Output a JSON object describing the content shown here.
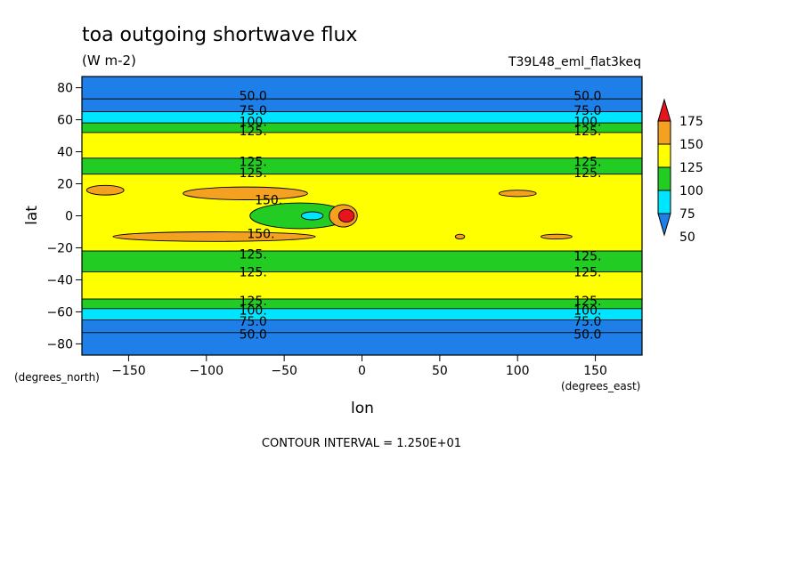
{
  "chart_data": {
    "type": "heatmap",
    "title": "toa outgoing shortwave flux",
    "subtitle": "(W m-2)",
    "dataset_label": "T39L48_eml_flat3keq",
    "xlabel": "lon",
    "ylabel": "lat",
    "x_units_label": "(degrees_east)",
    "y_units_label": "(degrees_north)",
    "xlim": [
      -180,
      180
    ],
    "ylim": [
      -87,
      87
    ],
    "x_ticks": [
      -150,
      -100,
      -50,
      0,
      50,
      100,
      150
    ],
    "y_ticks": [
      80,
      60,
      40,
      20,
      0,
      -20,
      -40,
      -60,
      -80
    ],
    "contour_interval_text": "CONTOUR INTERVAL = 1.250E+01",
    "colorbar": {
      "levels": [
        50,
        75,
        100,
        125,
        150,
        175
      ],
      "colors": [
        "#1f7fe8",
        "#00e5ff",
        "#22cc22",
        "#ffff00",
        "#f4a020",
        "#e8141c"
      ],
      "below_color": "#1f7fe8",
      "above_color": "#e8141c"
    },
    "zonal_bands": [
      {
        "lat_min": 73,
        "lat_max": 87,
        "band": "below 50"
      },
      {
        "lat_min": 65,
        "lat_max": 73,
        "band": "50-75"
      },
      {
        "lat_min": 58,
        "lat_max": 65,
        "band": "75-100"
      },
      {
        "lat_min": 52,
        "lat_max": 58,
        "band": "100-125"
      },
      {
        "lat_min": 36,
        "lat_max": 52,
        "band": "125-150"
      },
      {
        "lat_min": 26,
        "lat_max": 36,
        "band": "100-125"
      },
      {
        "lat_min": -22,
        "lat_max": 26,
        "band": "125-150"
      },
      {
        "lat_min": -35,
        "lat_max": -22,
        "band": "100-125"
      },
      {
        "lat_min": -52,
        "lat_max": -35,
        "band": "125-150"
      },
      {
        "lat_min": -58,
        "lat_max": -52,
        "band": "100-125"
      },
      {
        "lat_min": -65,
        "lat_max": -58,
        "band": "75-100"
      },
      {
        "lat_min": -73,
        "lat_max": -65,
        "band": "50-75"
      },
      {
        "lat_min": -87,
        "lat_max": -73,
        "band": "below 50"
      }
    ],
    "features": [
      {
        "shape": "ellipse",
        "lon": -75,
        "lat": 14,
        "rlon": 40,
        "rlat": 4,
        "band": "150-175"
      },
      {
        "shape": "ellipse",
        "lon": -165,
        "lat": 16,
        "rlon": 12,
        "rlat": 3,
        "band": "150-175"
      },
      {
        "shape": "ellipse",
        "lon": 100,
        "lat": 14,
        "rlon": 12,
        "rlat": 2,
        "band": "150-175"
      },
      {
        "shape": "ellipse",
        "lon": -95,
        "lat": -13,
        "rlon": 65,
        "rlat": 3,
        "band": "150-175"
      },
      {
        "shape": "ellipse",
        "lon": -40,
        "lat": 0,
        "rlon": 32,
        "rlat": 8,
        "band": "100-125"
      },
      {
        "shape": "ellipse",
        "lon": -32,
        "lat": 0,
        "rlon": 7,
        "rlat": 2.5,
        "band": "75-100"
      },
      {
        "shape": "ellipse",
        "lon": -12,
        "lat": 0,
        "rlon": 9,
        "rlat": 7,
        "band": "150-175"
      },
      {
        "shape": "ellipse",
        "lon": -10,
        "lat": 0,
        "rlon": 5,
        "rlat": 4,
        "band": "above 175"
      },
      {
        "shape": "ellipse",
        "lon": 125,
        "lat": -13,
        "rlon": 10,
        "rlat": 1.5,
        "band": "150-175"
      },
      {
        "shape": "ellipse",
        "lon": 63,
        "lat": -13,
        "rlon": 3,
        "rlat": 1.5,
        "band": "150-175"
      }
    ],
    "contour_labels": [
      {
        "text": "50.0",
        "lon": -70,
        "lat": 75
      },
      {
        "text": "75.0",
        "lon": -70,
        "lat": 66
      },
      {
        "text": "100.",
        "lon": -70,
        "lat": 59
      },
      {
        "text": "125.",
        "lon": -70,
        "lat": 53
      },
      {
        "text": "50.0",
        "lon": 145,
        "lat": 75
      },
      {
        "text": "75.0",
        "lon": 145,
        "lat": 66
      },
      {
        "text": "100.",
        "lon": 145,
        "lat": 59
      },
      {
        "text": "125.",
        "lon": 145,
        "lat": 53
      },
      {
        "text": "125.",
        "lon": -70,
        "lat": 34
      },
      {
        "text": "125.",
        "lon": -70,
        "lat": 27
      },
      {
        "text": "125.",
        "lon": 145,
        "lat": 34
      },
      {
        "text": "125.",
        "lon": 145,
        "lat": 27
      },
      {
        "text": "150.",
        "lon": -60,
        "lat": 10
      },
      {
        "text": "150.",
        "lon": -65,
        "lat": -11
      },
      {
        "text": "125.",
        "lon": -70,
        "lat": -24
      },
      {
        "text": "125.",
        "lon": -70,
        "lat": -35
      },
      {
        "text": "125.",
        "lon": 145,
        "lat": -25
      },
      {
        "text": "125.",
        "lon": 145,
        "lat": -35
      },
      {
        "text": "125.",
        "lon": -70,
        "lat": -53
      },
      {
        "text": "100.",
        "lon": -70,
        "lat": -59
      },
      {
        "text": "75.0",
        "lon": -70,
        "lat": -66
      },
      {
        "text": "50.0",
        "lon": -70,
        "lat": -74
      },
      {
        "text": "125.",
        "lon": 145,
        "lat": -53
      },
      {
        "text": "100.",
        "lon": 145,
        "lat": -59
      },
      {
        "text": "75.0",
        "lon": 145,
        "lat": -66
      },
      {
        "text": "50.0",
        "lon": 145,
        "lat": -74
      }
    ]
  }
}
